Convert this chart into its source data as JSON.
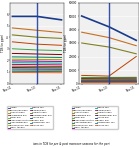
{
  "x_labels": [
    "Nov-11",
    "Nov-13",
    "Nov-15"
  ],
  "left_ylabel": "TDS (in ppm)",
  "right_ylabel": "TDS (in ppm)",
  "bg_color": "#f0f0f0",
  "left_series": [
    {
      "name": "Aravali",
      "values": [
        580,
        580,
        550
      ],
      "color": "#1a3a8a",
      "lw": 1.2
    },
    {
      "name": "Panchanana well",
      "values": [
        480,
        460,
        440
      ],
      "color": "#c87020",
      "lw": 0.8
    },
    {
      "name": "Srikhetra well",
      "values": [
        420,
        400,
        390
      ],
      "color": "#808020",
      "lw": 0.8
    },
    {
      "name": "Baladevjew well",
      "values": [
        360,
        340,
        330
      ],
      "color": "#c04000",
      "lw": 0.7
    },
    {
      "name": "Narail well",
      "values": [
        300,
        290,
        285
      ],
      "color": "#40a040",
      "lw": 0.7
    },
    {
      "name": "Radharani solution",
      "values": [
        260,
        255,
        250
      ],
      "color": "#800000",
      "lw": 0.7
    },
    {
      "name": "Radhanagar well",
      "values": [
        230,
        228,
        225
      ],
      "color": "#008060",
      "lw": 0.7
    },
    {
      "name": "Sinduria river well",
      "values": [
        210,
        208,
        206
      ],
      "color": "#a0a000",
      "lw": 0.7
    },
    {
      "name": "Machi tar well",
      "values": [
        195,
        193,
        191
      ],
      "color": "#800080",
      "lw": 0.7
    },
    {
      "name": "Madhu cell",
      "values": [
        180,
        178,
        176
      ],
      "color": "#00a0a0",
      "lw": 0.7
    },
    {
      "name": "Rambha well",
      "values": [
        165,
        163,
        161
      ],
      "color": "#c00060",
      "lw": 0.7
    },
    {
      "name": "Gopinath well",
      "values": [
        150,
        148,
        147
      ],
      "color": "#408000",
      "lw": 0.7
    },
    {
      "name": "Bhubaneswari well",
      "values": [
        138,
        136,
        135
      ],
      "color": "#800040",
      "lw": 0.7
    },
    {
      "name": "Alekha well",
      "values": [
        125,
        124,
        123
      ],
      "color": "#004080",
      "lw": 0.7
    },
    {
      "name": "Khadei well",
      "values": [
        115,
        114,
        113
      ],
      "color": "#c08000",
      "lw": 0.7
    },
    {
      "name": "Biswambhar cell",
      "values": [
        105,
        104,
        103
      ],
      "color": "#0080c0",
      "lw": 0.7
    },
    {
      "name": "Alekha cell",
      "values": [
        95,
        94,
        93
      ],
      "color": "#e06020",
      "lw": 0.7
    }
  ],
  "right_series": [
    {
      "name": "Aravali",
      "values": [
        50000,
        42000,
        32000
      ],
      "color": "#1a3a8a",
      "lw": 1.2
    },
    {
      "name": "Panchanana well",
      "values": [
        38000,
        34000,
        28000
      ],
      "color": "#c87020",
      "lw": 0.8
    },
    {
      "name": "Srikhetra well",
      "values": [
        30000,
        27000,
        22000
      ],
      "color": "#808020",
      "lw": 0.8
    },
    {
      "name": "Baladevjew well",
      "values": [
        6000,
        5500,
        20000
      ],
      "color": "#c04000",
      "lw": 0.7
    },
    {
      "name": "Narail well",
      "values": [
        4500,
        4500,
        4600
      ],
      "color": "#40a040",
      "lw": 0.7
    },
    {
      "name": "Radharani solution",
      "values": [
        3800,
        3900,
        4000
      ],
      "color": "#800000",
      "lw": 0.7
    },
    {
      "name": "Radhanagar well",
      "values": [
        3200,
        3300,
        3400
      ],
      "color": "#008060",
      "lw": 0.7
    },
    {
      "name": "Sinduria river well",
      "values": [
        2800,
        2900,
        3000
      ],
      "color": "#a0a000",
      "lw": 0.7
    },
    {
      "name": "Machi tar well",
      "values": [
        2400,
        2500,
        2600
      ],
      "color": "#800080",
      "lw": 0.7
    },
    {
      "name": "Madhu cell",
      "values": [
        2100,
        2150,
        2200
      ],
      "color": "#00a0a0",
      "lw": 0.7
    },
    {
      "name": "Rambha well",
      "values": [
        1800,
        1850,
        1900
      ],
      "color": "#c00060",
      "lw": 0.7
    },
    {
      "name": "Gopinath well",
      "values": [
        1600,
        1620,
        1640
      ],
      "color": "#408000",
      "lw": 0.7
    },
    {
      "name": "Bhubaneswari well",
      "values": [
        1400,
        1420,
        1440
      ],
      "color": "#800040",
      "lw": 0.7
    },
    {
      "name": "Alekha well",
      "values": [
        1200,
        1220,
        1240
      ],
      "color": "#004080",
      "lw": 0.7
    },
    {
      "name": "Khadei well",
      "values": [
        1000,
        1020,
        1040
      ],
      "color": "#c08000",
      "lw": 0.7
    },
    {
      "name": "Biswambhar cell",
      "values": [
        800,
        820,
        840
      ],
      "color": "#0080c0",
      "lw": 0.7
    },
    {
      "name": "Alekha cell",
      "values": [
        600,
        620,
        640
      ],
      "color": "#e06020",
      "lw": 0.7
    }
  ],
  "left_ylim": [
    0,
    700
  ],
  "right_ylim": [
    0,
    60000
  ],
  "left_yticks": [
    0,
    1,
    2,
    3,
    4,
    5,
    6
  ],
  "left_ytick_labels": [
    "0",
    "1",
    "2",
    "3",
    "4",
    "5",
    "6"
  ],
  "right_yticks": [
    0,
    10000,
    20000,
    30000,
    40000,
    50000,
    60000
  ],
  "right_ytick_labels": [
    "0",
    "10000",
    "20000",
    "30000",
    "40000",
    "50000",
    "60000"
  ],
  "vertical_line_x": 1,
  "vertical_line_color": "#2040a0",
  "caption": "ions in TDS for pre & post monsoon seasons for the peri"
}
